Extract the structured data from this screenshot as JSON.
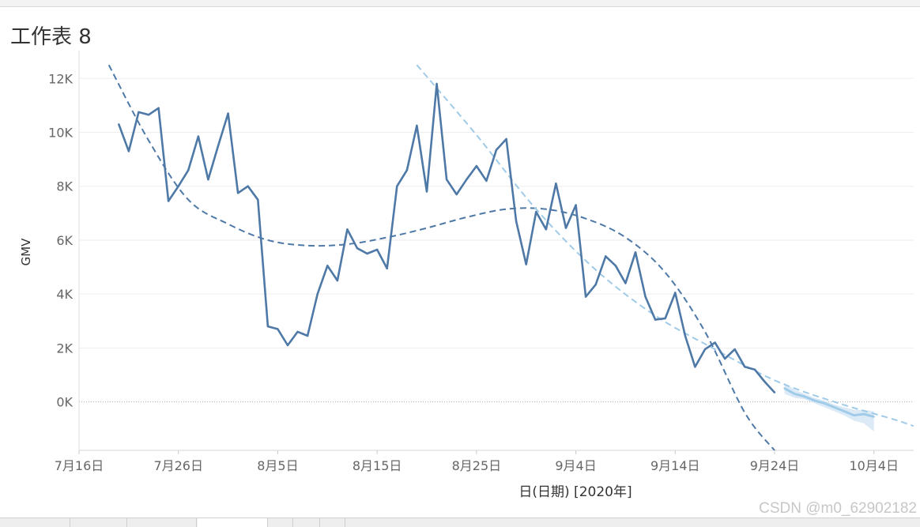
{
  "sheet": {
    "title": "工作表 8"
  },
  "watermark": "CSDN @m0_62902182",
  "colors": {
    "actual": "#4e79a7",
    "forecast": "#a0cbe8",
    "forecast_band": "#cfe3f3",
    "trend_poly": "#4e79a7",
    "trend_linear": "#a0cbe8",
    "grid": "#eeeeee",
    "zero_line": "#b0b0b0",
    "axis_text": "#666666"
  },
  "chart_data": {
    "type": "line",
    "title": "",
    "xlabel": "日(日期) [2020年]",
    "ylabel": "GMV",
    "x_ticks": [
      "7月16日",
      "7月26日",
      "8月5日",
      "8月15日",
      "8月25日",
      "9月4日",
      "9月14日",
      "9月24日",
      "10月4日"
    ],
    "x_tick_dates": [
      "2020-07-16",
      "2020-07-26",
      "2020-08-05",
      "2020-08-15",
      "2020-08-25",
      "2020-09-04",
      "2020-09-14",
      "2020-09-24",
      "2020-10-04"
    ],
    "y_ticks": [
      "12K",
      "10K",
      "8K",
      "6K",
      "4K",
      "2K",
      "0K"
    ],
    "y_tick_values": [
      12000,
      10000,
      8000,
      6000,
      4000,
      2000,
      0
    ],
    "xlim": [
      "2020-07-16",
      "2020-10-08"
    ],
    "ylim": [
      -1800,
      12800
    ],
    "grid": true,
    "series": [
      {
        "kind": "actual",
        "x": [
          "2020-07-20",
          "2020-07-21",
          "2020-07-22",
          "2020-07-23",
          "2020-07-24",
          "2020-07-25",
          "2020-07-26",
          "2020-07-27",
          "2020-07-28",
          "2020-07-29",
          "2020-07-30",
          "2020-07-31",
          "2020-08-01",
          "2020-08-02",
          "2020-08-03",
          "2020-08-04",
          "2020-08-05",
          "2020-08-06",
          "2020-08-07",
          "2020-08-08",
          "2020-08-09",
          "2020-08-10",
          "2020-08-11",
          "2020-08-12",
          "2020-08-13",
          "2020-08-14",
          "2020-08-15",
          "2020-08-16",
          "2020-08-17",
          "2020-08-18",
          "2020-08-19",
          "2020-08-20",
          "2020-08-21",
          "2020-08-22",
          "2020-08-23",
          "2020-08-24",
          "2020-08-25",
          "2020-08-26",
          "2020-08-27",
          "2020-08-28",
          "2020-08-29",
          "2020-08-30",
          "2020-08-31",
          "2020-09-01",
          "2020-09-02",
          "2020-09-03",
          "2020-09-04",
          "2020-09-05",
          "2020-09-06",
          "2020-09-07",
          "2020-09-08",
          "2020-09-09",
          "2020-09-10",
          "2020-09-11",
          "2020-09-12",
          "2020-09-13",
          "2020-09-14",
          "2020-09-15",
          "2020-09-16",
          "2020-09-17",
          "2020-09-18",
          "2020-09-19",
          "2020-09-20",
          "2020-09-21",
          "2020-09-22",
          "2020-09-23",
          "2020-09-24"
        ],
        "values": [
          10300,
          9300,
          10750,
          10650,
          10900,
          7450,
          8000,
          8600,
          9850,
          8250,
          9500,
          10700,
          7750,
          8000,
          7500,
          2800,
          2700,
          2100,
          2600,
          2450,
          4000,
          5050,
          4500,
          6400,
          5700,
          5500,
          5650,
          4950,
          8000,
          8600,
          10250,
          7800,
          11800,
          8250,
          7700,
          8250,
          8750,
          8200,
          9350,
          9750,
          6700,
          5100,
          7050,
          6400,
          8100,
          6450,
          7300,
          3900,
          4350,
          5400,
          5050,
          4400,
          5550,
          3900,
          3050,
          3100,
          4050,
          2450,
          1300,
          1950,
          2200,
          1600,
          1950,
          1300,
          1200,
          750,
          350
        ]
      },
      {
        "kind": "forecast",
        "x": [
          "2020-09-25",
          "2020-09-26",
          "2020-09-27",
          "2020-09-28",
          "2020-09-29",
          "2020-09-30",
          "2020-10-01",
          "2020-10-02",
          "2020-10-03",
          "2020-10-04"
        ],
        "values": [
          500,
          300,
          200,
          50,
          -50,
          -200,
          -350,
          -500,
          -450,
          -550
        ],
        "band_upper": [
          700,
          450,
          300,
          150,
          50,
          -100,
          -200,
          -300,
          -300,
          -350
        ],
        "band_lower": [
          300,
          150,
          100,
          -50,
          -200,
          -350,
          -500,
          -700,
          -800,
          -1100
        ]
      }
    ],
    "trend_lines": [
      {
        "kind": "polynomial",
        "style": "dashed",
        "x": [
          "2020-07-19",
          "2020-07-23",
          "2020-07-27",
          "2020-07-31",
          "2020-08-04",
          "2020-08-08",
          "2020-08-12",
          "2020-08-16",
          "2020-08-20",
          "2020-08-24",
          "2020-08-28",
          "2020-09-01",
          "2020-09-05",
          "2020-09-09",
          "2020-09-13",
          "2020-09-17",
          "2020-09-21",
          "2020-09-24"
        ],
        "values": [
          12500,
          9700,
          7500,
          6600,
          6000,
          5800,
          5850,
          6100,
          6450,
          6850,
          7150,
          7150,
          6800,
          6100,
          4800,
          2600,
          -400,
          -1800
        ]
      },
      {
        "kind": "linear",
        "style": "dashed",
        "x": [
          "2020-08-19",
          "2020-08-25",
          "2020-08-31",
          "2020-09-06",
          "2020-09-12",
          "2020-09-18",
          "2020-09-24",
          "2020-09-30",
          "2020-10-06",
          "2020-10-08"
        ],
        "values": [
          12500,
          9900,
          7150,
          4900,
          3200,
          1950,
          800,
          0,
          -650,
          -900
        ]
      }
    ]
  }
}
